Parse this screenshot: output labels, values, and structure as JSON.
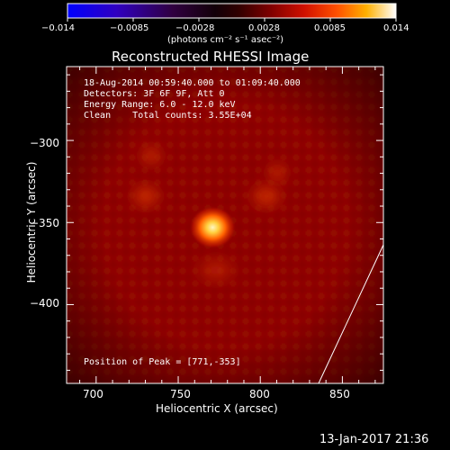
{
  "colorbar": {
    "tick_labels": [
      "−0.014",
      "−0.0085",
      "−0.0028",
      "0.0028",
      "0.0085",
      "0.014"
    ],
    "unit_label": "(photons cm⁻² s⁻¹ asec⁻²)",
    "range": [
      -0.014,
      0.014
    ],
    "colormap": [
      "#0000ff",
      "#4000a0",
      "#200020",
      "#000000",
      "#500000",
      "#b00000",
      "#ff3000",
      "#ff9000",
      "#ffe000",
      "#ffffff"
    ]
  },
  "plot": {
    "title": "Reconstructed RHESSI Image",
    "info_lines": [
      "18-Aug-2014 00:59:40.000 to 01:09:40.000",
      "Detectors: 3F 6F 9F, Att 0",
      "Energy Range: 6.0 - 12.0 keV",
      "Clean    Total counts: 3.55E+04"
    ],
    "peak_text": "Position of Peak = [771,-353]",
    "xlabel": "Heliocentric X (arcsec)",
    "ylabel": "Heliocentric Y (arcsec)",
    "xticks": [
      "700",
      "750",
      "800",
      "850"
    ],
    "yticks": [
      "−300",
      "−350",
      "−400"
    ],
    "xlim": [
      682,
      875
    ],
    "ylim": [
      -448,
      -255
    ],
    "peak": [
      771,
      -353
    ]
  },
  "timestamp": "13-Jan-2017 21:36",
  "colors": {
    "background": "#000000",
    "axis": "#ffffff",
    "image_base": "#8c0000",
    "peak_core": "#ffe08a"
  }
}
